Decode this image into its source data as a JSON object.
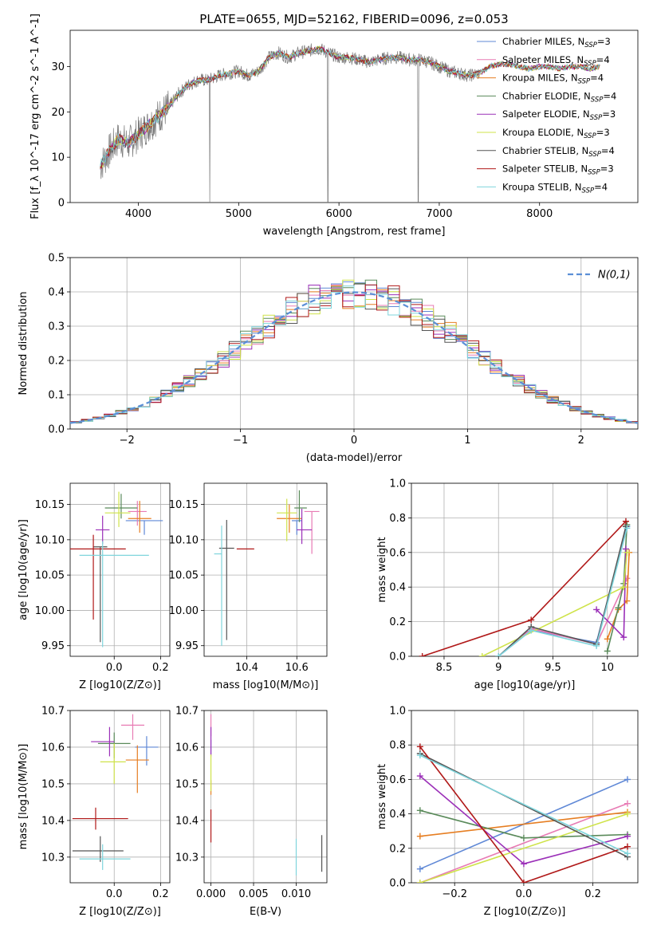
{
  "figure": {
    "title": "PLATE=0655, MJD=52162, FIBERID=0096, z=0.053"
  },
  "models": [
    {
      "name": "Chabrier MILES, N_SSP=3",
      "imf": "Chabrier",
      "lib": "MILES",
      "n": "3",
      "color": "#5f88d6"
    },
    {
      "name": "Salpeter MILES, N_SSP=4",
      "imf": "Salpeter",
      "lib": "MILES",
      "n": "4",
      "color": "#e87bb4"
    },
    {
      "name": "Kroupa MILES, N_SSP=4",
      "imf": "Kroupa",
      "lib": "MILES",
      "n": "4",
      "color": "#e67e22"
    },
    {
      "name": "Chabrier ELODIE, N_SSP=4",
      "imf": "Chabrier",
      "lib": "ELODIE",
      "n": "4",
      "color": "#5a8a5a"
    },
    {
      "name": "Salpeter ELODIE, N_SSP=3",
      "imf": "Salpeter",
      "lib": "ELODIE",
      "n": "3",
      "color": "#9b30b8"
    },
    {
      "name": "Kroupa ELODIE, N_SSP=3",
      "imf": "Kroupa",
      "lib": "ELODIE",
      "n": "3",
      "color": "#cfe34a"
    },
    {
      "name": "Chabrier STELIB, N_SSP=4",
      "imf": "Chabrier",
      "lib": "STELIB",
      "n": "4",
      "color": "#555555"
    },
    {
      "name": "Salpeter STELIB, N_SSP=3",
      "imf": "Salpeter",
      "lib": "STELIB",
      "n": "3",
      "color": "#b01818"
    },
    {
      "name": "Kroupa STELIB, N_SSP=4",
      "imf": "Kroupa",
      "lib": "STELIB",
      "n": "4",
      "color": "#7fd5dc"
    }
  ],
  "chart_data": [
    {
      "id": "spectrum",
      "type": "line",
      "title": "PLATE=0655, MJD=52162, FIBERID=0096, z=0.053",
      "xlabel": "wavelength [Angstrom, rest frame]",
      "ylabel": "Flux [f_λ 10^-17 erg cm^-2 s^-1 A^-1]",
      "xlim": [
        3320,
        8980
      ],
      "ylim": [
        0,
        38
      ],
      "xticks": [
        4000,
        5000,
        6000,
        7000,
        8000
      ],
      "yticks": [
        0,
        10,
        20,
        30
      ],
      "grid": false,
      "legend": "top-right",
      "x": [
        3620,
        3700,
        3800,
        3900,
        4000,
        4100,
        4200,
        4300,
        4400,
        4500,
        4600,
        4700,
        4800,
        4900,
        5000,
        5100,
        5200,
        5300,
        5400,
        5500,
        5600,
        5700,
        5800,
        5900,
        6000,
        6100,
        6200,
        6300,
        6400,
        6500,
        6600,
        6700,
        6800,
        6900,
        7000,
        7100,
        7200,
        7300,
        7400,
        7500,
        7600,
        7700,
        7800,
        7900,
        8000,
        8100,
        8200,
        8300,
        8400,
        8500,
        8600
      ],
      "y": [
        8,
        11,
        14,
        13,
        15,
        17,
        19,
        21,
        24,
        26,
        27,
        27,
        28,
        28.5,
        29,
        28,
        29,
        32,
        33,
        32,
        33,
        33.5,
        34,
        33,
        32,
        32,
        31.5,
        31,
        31.5,
        32,
        32,
        31.5,
        31.5,
        31,
        30,
        29,
        28.5,
        28,
        28.5,
        30,
        30.5,
        30.5,
        30,
        29.5,
        30,
        30,
        29.5,
        30,
        30,
        29.5,
        30
      ]
    },
    {
      "id": "residuals",
      "type": "line",
      "xlabel": "(data-model)/error",
      "ylabel": "Normed distribution",
      "xlim": [
        -2.5,
        2.5
      ],
      "ylim": [
        0,
        0.5
      ],
      "xticks": [
        -2,
        -1,
        0,
        1,
        2
      ],
      "yticks": [
        0.0,
        0.1,
        0.2,
        0.3,
        0.4,
        0.5
      ],
      "grid": true,
      "legend": "top-right",
      "reference_label": "N(0,1)",
      "reference": {
        "mean": 0,
        "sigma": 1
      },
      "bins": {
        "start": -2.5,
        "width": 0.1,
        "count": 50
      }
    },
    {
      "id": "age-vs-Z",
      "type": "scatter",
      "xlabel": "Z [log10(Z/Z⊙)]",
      "ylabel": "age [log10(age/yr)]",
      "xlim": [
        -0.19,
        0.24
      ],
      "ylim": [
        9.935,
        10.18
      ],
      "xticks": [
        0.0,
        0.2
      ],
      "xticklabels": [
        "0.0",
        "0.2"
      ],
      "yticks": [
        9.95,
        10.0,
        10.05,
        10.1,
        10.15
      ],
      "yticklabels": [
        "9.95",
        "10.00",
        "10.05",
        "10.10",
        "10.15"
      ],
      "grid": true,
      "points": [
        {
          "model": 0,
          "x": 0.13,
          "xerr": [
            0.08,
            0.08
          ],
          "y": 10.127,
          "yerr": [
            0.02,
            0.0
          ]
        },
        {
          "model": 1,
          "x": 0.1,
          "xerr": [
            0.04,
            0.04
          ],
          "y": 10.14,
          "yerr": [
            0.02,
            0.015
          ]
        },
        {
          "model": 2,
          "x": 0.11,
          "xerr": [
            0.05,
            0.05
          ],
          "y": 10.13,
          "yerr": [
            0.02,
            0.025
          ]
        },
        {
          "model": 3,
          "x": 0.03,
          "xerr": [
            0.07,
            0.07
          ],
          "y": 10.145,
          "yerr": [
            0.015,
            0.02
          ]
        },
        {
          "model": 4,
          "x": -0.05,
          "xerr": [
            0.03,
            0.03
          ],
          "y": 10.114,
          "yerr": [
            0.02,
            0.02
          ]
        },
        {
          "model": 5,
          "x": 0.02,
          "xerr": [
            0.06,
            0.05
          ],
          "y": 10.138,
          "yerr": [
            0.02,
            0.03
          ]
        },
        {
          "model": 6,
          "x": -0.06,
          "xerr": [
            0.03,
            0.03
          ],
          "y": 10.09,
          "yerr": [
            0.135,
            0.0
          ]
        },
        {
          "model": 7,
          "x": -0.09,
          "xerr": [
            0.1,
            0.14
          ],
          "y": 10.087,
          "yerr": [
            0.1,
            0.02
          ]
        },
        {
          "model": 8,
          "x": -0.05,
          "xerr": [
            0.1,
            0.2
          ],
          "y": 10.078,
          "yerr": [
            0.13,
            0.02
          ]
        }
      ]
    },
    {
      "id": "age-vs-mass",
      "type": "scatter",
      "xlabel": "mass [log10(M/M⊙)]",
      "xlim": [
        10.23,
        10.72
      ],
      "ylim": [
        9.935,
        10.18
      ],
      "xticks": [
        10.4,
        10.6
      ],
      "xticklabels": [
        "10.4",
        "10.6"
      ],
      "yticks": [
        9.95,
        10.0,
        10.05,
        10.1,
        10.15
      ],
      "yticklabels": [
        "9.95",
        "10.00",
        "10.05",
        "10.10",
        "10.15"
      ],
      "grid": true,
      "points": [
        {
          "model": 0,
          "x": 10.6,
          "xerr": [
            0.02,
            0.02
          ],
          "y": 10.127,
          "yerr": [
            0.02,
            0.0
          ]
        },
        {
          "model": 1,
          "x": 10.66,
          "xerr": [
            0.03,
            0.03
          ],
          "y": 10.14,
          "yerr": [
            0.06,
            0.0
          ]
        },
        {
          "model": 2,
          "x": 10.57,
          "xerr": [
            0.05,
            0.05
          ],
          "y": 10.13,
          "yerr": [
            0.02,
            0.02
          ]
        },
        {
          "model": 3,
          "x": 10.61,
          "xerr": [
            0.02,
            0.03
          ],
          "y": 10.145,
          "yerr": [
            0.02,
            0.025
          ]
        },
        {
          "model": 4,
          "x": 10.62,
          "xerr": [
            0.02,
            0.04
          ],
          "y": 10.114,
          "yerr": [
            0.02,
            0.03
          ]
        },
        {
          "model": 5,
          "x": 10.56,
          "xerr": [
            0.04,
            0.04
          ],
          "y": 10.138,
          "yerr": [
            0.04,
            0.02
          ]
        },
        {
          "model": 6,
          "x": 10.32,
          "xerr": [
            0.03,
            0.03
          ],
          "y": 10.088,
          "yerr": [
            0.13,
            0.04
          ]
        },
        {
          "model": 7,
          "x": 10.4,
          "xerr": [
            0.04,
            0.03
          ],
          "y": 10.087,
          "yerr": [
            0.0,
            0.0
          ]
        },
        {
          "model": 8,
          "x": 10.3,
          "xerr": [
            0.03,
            0.0
          ],
          "y": 10.08,
          "yerr": [
            0.13,
            0.04
          ]
        }
      ]
    },
    {
      "id": "weight-vs-age",
      "type": "line",
      "xlabel": "age [log10(age/yr)]",
      "ylabel": "mass weight",
      "xlim": [
        8.2,
        10.28
      ],
      "ylim": [
        0.0,
        1.0
      ],
      "xticks": [
        8.5,
        9.0,
        9.5,
        10.0
      ],
      "yticks": [
        0.0,
        0.2,
        0.4,
        0.6,
        0.8,
        1.0
      ],
      "grid": true,
      "series": [
        {
          "model": 0,
          "x": [
            9.0,
            9.3,
            9.9,
            10.18
          ],
          "y": [
            0.0,
            0.15,
            0.08,
            0.75
          ]
        },
        {
          "model": 1,
          "x": [
            9.0,
            9.3,
            9.9,
            10.18
          ],
          "y": [
            0.0,
            0.16,
            0.07,
            0.45
          ]
        },
        {
          "model": 2,
          "x": [
            10.0,
            10.1,
            10.18,
            10.2
          ],
          "y": [
            0.1,
            0.27,
            0.32,
            0.6
          ]
        },
        {
          "model": 3,
          "x": [
            10.0,
            10.1,
            10.15,
            10.18
          ],
          "y": [
            0.03,
            0.28,
            0.42,
            0.76
          ]
        },
        {
          "model": 4,
          "x": [
            9.9,
            10.15,
            10.17
          ],
          "y": [
            0.27,
            0.11,
            0.62
          ]
        },
        {
          "model": 5,
          "x": [
            8.85,
            10.15,
            10.18
          ],
          "y": [
            0.0,
            0.4,
            0.6
          ]
        },
        {
          "model": 6,
          "x": [
            9.0,
            9.3,
            9.9,
            10.17
          ],
          "y": [
            0.0,
            0.17,
            0.07,
            0.75
          ]
        },
        {
          "model": 7,
          "x": [
            8.3,
            9.3,
            10.17
          ],
          "y": [
            0.0,
            0.21,
            0.78
          ]
        },
        {
          "model": 8,
          "x": [
            9.0,
            9.3,
            9.9,
            10.18
          ],
          "y": [
            0.0,
            0.15,
            0.06,
            0.74
          ]
        }
      ]
    },
    {
      "id": "mass-vs-Z",
      "type": "scatter",
      "xlabel": "Z [log10(Z/Z⊙)]",
      "ylabel": "mass [log10(M/M⊙)]",
      "xlim": [
        -0.19,
        0.24
      ],
      "ylim": [
        10.23,
        10.7
      ],
      "xticks": [
        0.0,
        0.2
      ],
      "xticklabels": [
        "0.0",
        "0.2"
      ],
      "yticks": [
        10.3,
        10.4,
        10.5,
        10.6,
        10.7
      ],
      "yticklabels": [
        "10.3",
        "10.4",
        "10.5",
        "10.6",
        "10.7"
      ],
      "grid": true,
      "points": [
        {
          "model": 0,
          "x": 0.14,
          "xerr": [
            0.05,
            0.05
          ],
          "y": 10.6,
          "yerr": [
            0.05,
            0.03
          ]
        },
        {
          "model": 1,
          "x": 0.08,
          "xerr": [
            0.05,
            0.05
          ],
          "y": 10.66,
          "yerr": [
            0.04,
            0.03
          ]
        },
        {
          "model": 2,
          "x": 0.1,
          "xerr": [
            0.05,
            0.05
          ],
          "y": 10.565,
          "yerr": [
            0.09,
            0.04
          ]
        },
        {
          "model": 3,
          "x": 0.0,
          "xerr": [
            0.07,
            0.07
          ],
          "y": 10.61,
          "yerr": [
            0.04,
            0.03
          ]
        },
        {
          "model": 4,
          "x": -0.02,
          "xerr": [
            0.08,
            0.02
          ],
          "y": 10.615,
          "yerr": [
            0.04,
            0.04
          ]
        },
        {
          "model": 5,
          "x": 0.0,
          "xerr": [
            0.06,
            0.05
          ],
          "y": 10.56,
          "yerr": [
            0.06,
            0.05
          ]
        },
        {
          "model": 6,
          "x": -0.06,
          "xerr": [
            0.12,
            0.1
          ],
          "y": 10.317,
          "yerr": [
            0.03,
            0.04
          ]
        },
        {
          "model": 7,
          "x": -0.08,
          "xerr": [
            0.1,
            0.14
          ],
          "y": 10.405,
          "yerr": [
            0.03,
            0.03
          ]
        },
        {
          "model": 8,
          "x": -0.05,
          "xerr": [
            0.1,
            0.12
          ],
          "y": 10.295,
          "yerr": [
            0.03,
            0.04
          ]
        }
      ]
    },
    {
      "id": "mass-vs-ebv",
      "type": "scatter",
      "xlabel": "E(B-V)",
      "xlim": [
        -0.0008,
        0.0136
      ],
      "ylim": [
        10.23,
        10.7
      ],
      "xticks": [
        0.0,
        0.005,
        0.01
      ],
      "xticklabels": [
        "0.000",
        "0.005",
        "0.010"
      ],
      "yticks": [
        10.3,
        10.4,
        10.5,
        10.6,
        10.7
      ],
      "yticklabels": [
        "10.3",
        "10.4",
        "10.5",
        "10.6",
        "10.7"
      ],
      "grid": true,
      "points": [
        {
          "model": 0,
          "x": 0.0,
          "xerr": [
            0,
            0
          ],
          "y": 10.6,
          "yerr": [
            0.02,
            0.02
          ]
        },
        {
          "model": 1,
          "x": 0.0,
          "xerr": [
            0,
            0
          ],
          "y": 10.66,
          "yerr": [
            0.03,
            0.03
          ]
        },
        {
          "model": 2,
          "x": 0.0,
          "xerr": [
            0,
            0
          ],
          "y": 10.49,
          "yerr": [
            0.02,
            0.02
          ]
        },
        {
          "model": 4,
          "x": 0.0,
          "xerr": [
            0,
            0
          ],
          "y": 10.615,
          "yerr": [
            0.04,
            0.04
          ]
        },
        {
          "model": 5,
          "x": 0.0,
          "xerr": [
            0,
            0
          ],
          "y": 10.53,
          "yerr": [
            0.05,
            0.05
          ]
        },
        {
          "model": 6,
          "x": 0.013,
          "xerr": [
            0,
            0
          ],
          "y": 10.31,
          "yerr": [
            0.05,
            0.05
          ]
        },
        {
          "model": 7,
          "x": 0.0,
          "xerr": [
            0,
            0
          ],
          "y": 10.38,
          "yerr": [
            0.04,
            0.05
          ]
        },
        {
          "model": 8,
          "x": 0.01,
          "xerr": [
            0,
            0
          ],
          "y": 10.3,
          "yerr": [
            0.05,
            0.05
          ]
        }
      ]
    },
    {
      "id": "weight-vs-Z",
      "type": "line",
      "xlabel": "Z [log10(Z/Z⊙)]",
      "ylabel": "mass weight",
      "xlim": [
        -0.325,
        0.33
      ],
      "ylim": [
        0.0,
        1.0
      ],
      "xticks": [
        -0.2,
        0.0,
        0.2
      ],
      "xticklabels": [
        "−0.2",
        "0.0",
        "0.2"
      ],
      "yticks": [
        0.0,
        0.2,
        0.4,
        0.6,
        0.8,
        1.0
      ],
      "grid": true,
      "series": [
        {
          "model": 0,
          "x": [
            -0.3,
            0.3
          ],
          "y": [
            0.08,
            0.6
          ]
        },
        {
          "model": 1,
          "x": [
            -0.3,
            0.3
          ],
          "y": [
            0.0,
            0.46
          ]
        },
        {
          "model": 2,
          "x": [
            -0.3,
            0.3
          ],
          "y": [
            0.27,
            0.41
          ]
        },
        {
          "model": 3,
          "x": [
            -0.3,
            0.0,
            0.3
          ],
          "y": [
            0.42,
            0.26,
            0.28
          ]
        },
        {
          "model": 4,
          "x": [
            -0.3,
            0.0,
            0.3
          ],
          "y": [
            0.62,
            0.11,
            0.27
          ]
        },
        {
          "model": 5,
          "x": [
            -0.3,
            0.3
          ],
          "y": [
            0.0,
            0.4
          ]
        },
        {
          "model": 6,
          "x": [
            -0.3,
            0.3
          ],
          "y": [
            0.75,
            0.15
          ]
        },
        {
          "model": 7,
          "x": [
            -0.3,
            0.0,
            0.3
          ],
          "y": [
            0.79,
            0.0,
            0.21
          ]
        },
        {
          "model": 8,
          "x": [
            -0.3,
            0.3
          ],
          "y": [
            0.74,
            0.17
          ]
        }
      ]
    }
  ]
}
